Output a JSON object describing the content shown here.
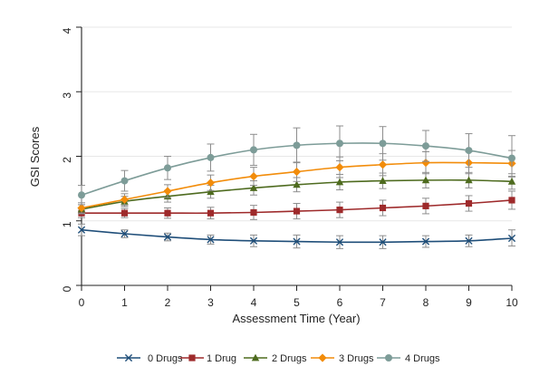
{
  "chart_data": {
    "type": "line",
    "title": "",
    "xlabel": "Assessment Time (Year)",
    "ylabel": "GSI Scores",
    "x": [
      0,
      1,
      2,
      3,
      4,
      5,
      6,
      7,
      8,
      9,
      10
    ],
    "xlim": [
      0,
      10
    ],
    "ylim": [
      0,
      4
    ],
    "x_ticks": [
      0,
      1,
      2,
      3,
      4,
      5,
      6,
      7,
      8,
      9,
      10
    ],
    "y_ticks": [
      0,
      1,
      2,
      3,
      4
    ],
    "grid": "horizontal",
    "legend_position": "bottom",
    "series": [
      {
        "name": "0 Drugs",
        "color": "#1f4e79",
        "marker": "x",
        "values": [
          0.86,
          0.8,
          0.75,
          0.71,
          0.69,
          0.68,
          0.67,
          0.67,
          0.68,
          0.69,
          0.73
        ],
        "lower": [
          0.77,
          0.74,
          0.69,
          0.64,
          0.6,
          0.58,
          0.57,
          0.57,
          0.59,
          0.6,
          0.61
        ],
        "upper": [
          0.95,
          0.86,
          0.81,
          0.78,
          0.78,
          0.78,
          0.77,
          0.77,
          0.77,
          0.78,
          0.86
        ]
      },
      {
        "name": "1 Drug",
        "color": "#9e2a2b",
        "marker": "square",
        "values": [
          1.12,
          1.12,
          1.12,
          1.12,
          1.13,
          1.15,
          1.17,
          1.2,
          1.23,
          1.27,
          1.32
        ],
        "lower": [
          1.05,
          1.05,
          1.04,
          1.03,
          1.02,
          1.03,
          1.05,
          1.08,
          1.11,
          1.15,
          1.18
        ],
        "upper": [
          1.19,
          1.19,
          1.2,
          1.21,
          1.24,
          1.27,
          1.29,
          1.32,
          1.35,
          1.39,
          1.46
        ]
      },
      {
        "name": "2 Drugs",
        "color": "#4e6b1f",
        "marker": "triangle",
        "values": [
          1.18,
          1.3,
          1.38,
          1.45,
          1.51,
          1.56,
          1.6,
          1.62,
          1.63,
          1.63,
          1.61
        ],
        "lower": [
          1.11,
          1.22,
          1.29,
          1.35,
          1.4,
          1.45,
          1.48,
          1.5,
          1.51,
          1.51,
          1.49
        ],
        "upper": [
          1.25,
          1.38,
          1.47,
          1.55,
          1.62,
          1.67,
          1.72,
          1.74,
          1.75,
          1.75,
          1.73
        ]
      },
      {
        "name": "3 Drugs",
        "color": "#f28c0a",
        "marker": "diamond",
        "values": [
          1.2,
          1.33,
          1.46,
          1.59,
          1.69,
          1.76,
          1.83,
          1.87,
          1.9,
          1.9,
          1.89
        ],
        "lower": [
          1.12,
          1.24,
          1.36,
          1.47,
          1.55,
          1.61,
          1.67,
          1.7,
          1.73,
          1.73,
          1.69
        ],
        "upper": [
          1.28,
          1.42,
          1.56,
          1.71,
          1.83,
          1.91,
          1.99,
          2.04,
          2.07,
          2.07,
          2.09
        ]
      },
      {
        "name": "4 Drugs",
        "color": "#7d9c98",
        "marker": "circle",
        "values": [
          1.4,
          1.62,
          1.82,
          1.98,
          2.1,
          2.17,
          2.2,
          2.2,
          2.16,
          2.09,
          1.97
        ],
        "lower": [
          1.25,
          1.46,
          1.64,
          1.77,
          1.86,
          1.9,
          1.93,
          1.94,
          1.92,
          1.83,
          1.68
        ],
        "upper": [
          1.55,
          1.78,
          2.0,
          2.19,
          2.34,
          2.44,
          2.47,
          2.46,
          2.4,
          2.35,
          2.32
        ]
      }
    ]
  }
}
